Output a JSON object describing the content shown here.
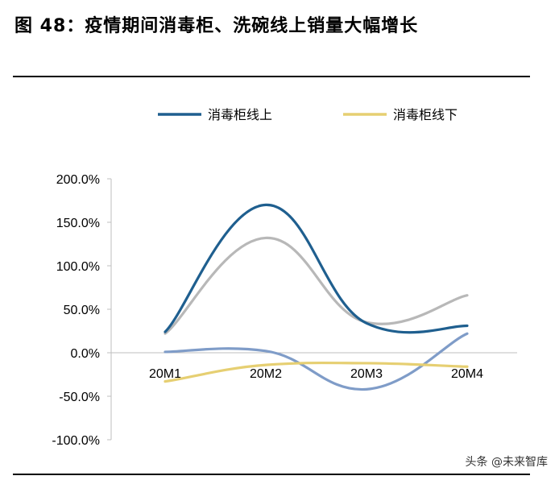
{
  "title": "图  48：疫情期间消毒柜、洗碗线上销量大幅增长",
  "watermark": "头条 @未来智库",
  "chart_data": {
    "type": "line",
    "categories": [
      "20M1",
      "20M2",
      "20M3",
      "20M4"
    ],
    "y_ticks": [
      "200.0%",
      "150.0%",
      "100.0%",
      "50.0%",
      "0.0%",
      "-50.0%",
      "-100.0%"
    ],
    "ylim": [
      -100,
      200
    ],
    "legend_position": "top",
    "series": [
      {
        "name": "消毒柜线上",
        "color": "#1f5f8f",
        "values": [
          24,
          170,
          34,
          31
        ],
        "smooth": true
      },
      {
        "name": "消毒柜线下",
        "color": "#e6cf72",
        "values": [
          -33,
          -14,
          -12,
          -16
        ],
        "smooth": true
      },
      {
        "name": "",
        "color": "#b8b8b8",
        "values": [
          22,
          132,
          35,
          66
        ],
        "smooth": true
      },
      {
        "name": "",
        "color": "#7f9cc8",
        "values": [
          1,
          2,
          -42,
          22
        ],
        "smooth": true
      }
    ]
  }
}
